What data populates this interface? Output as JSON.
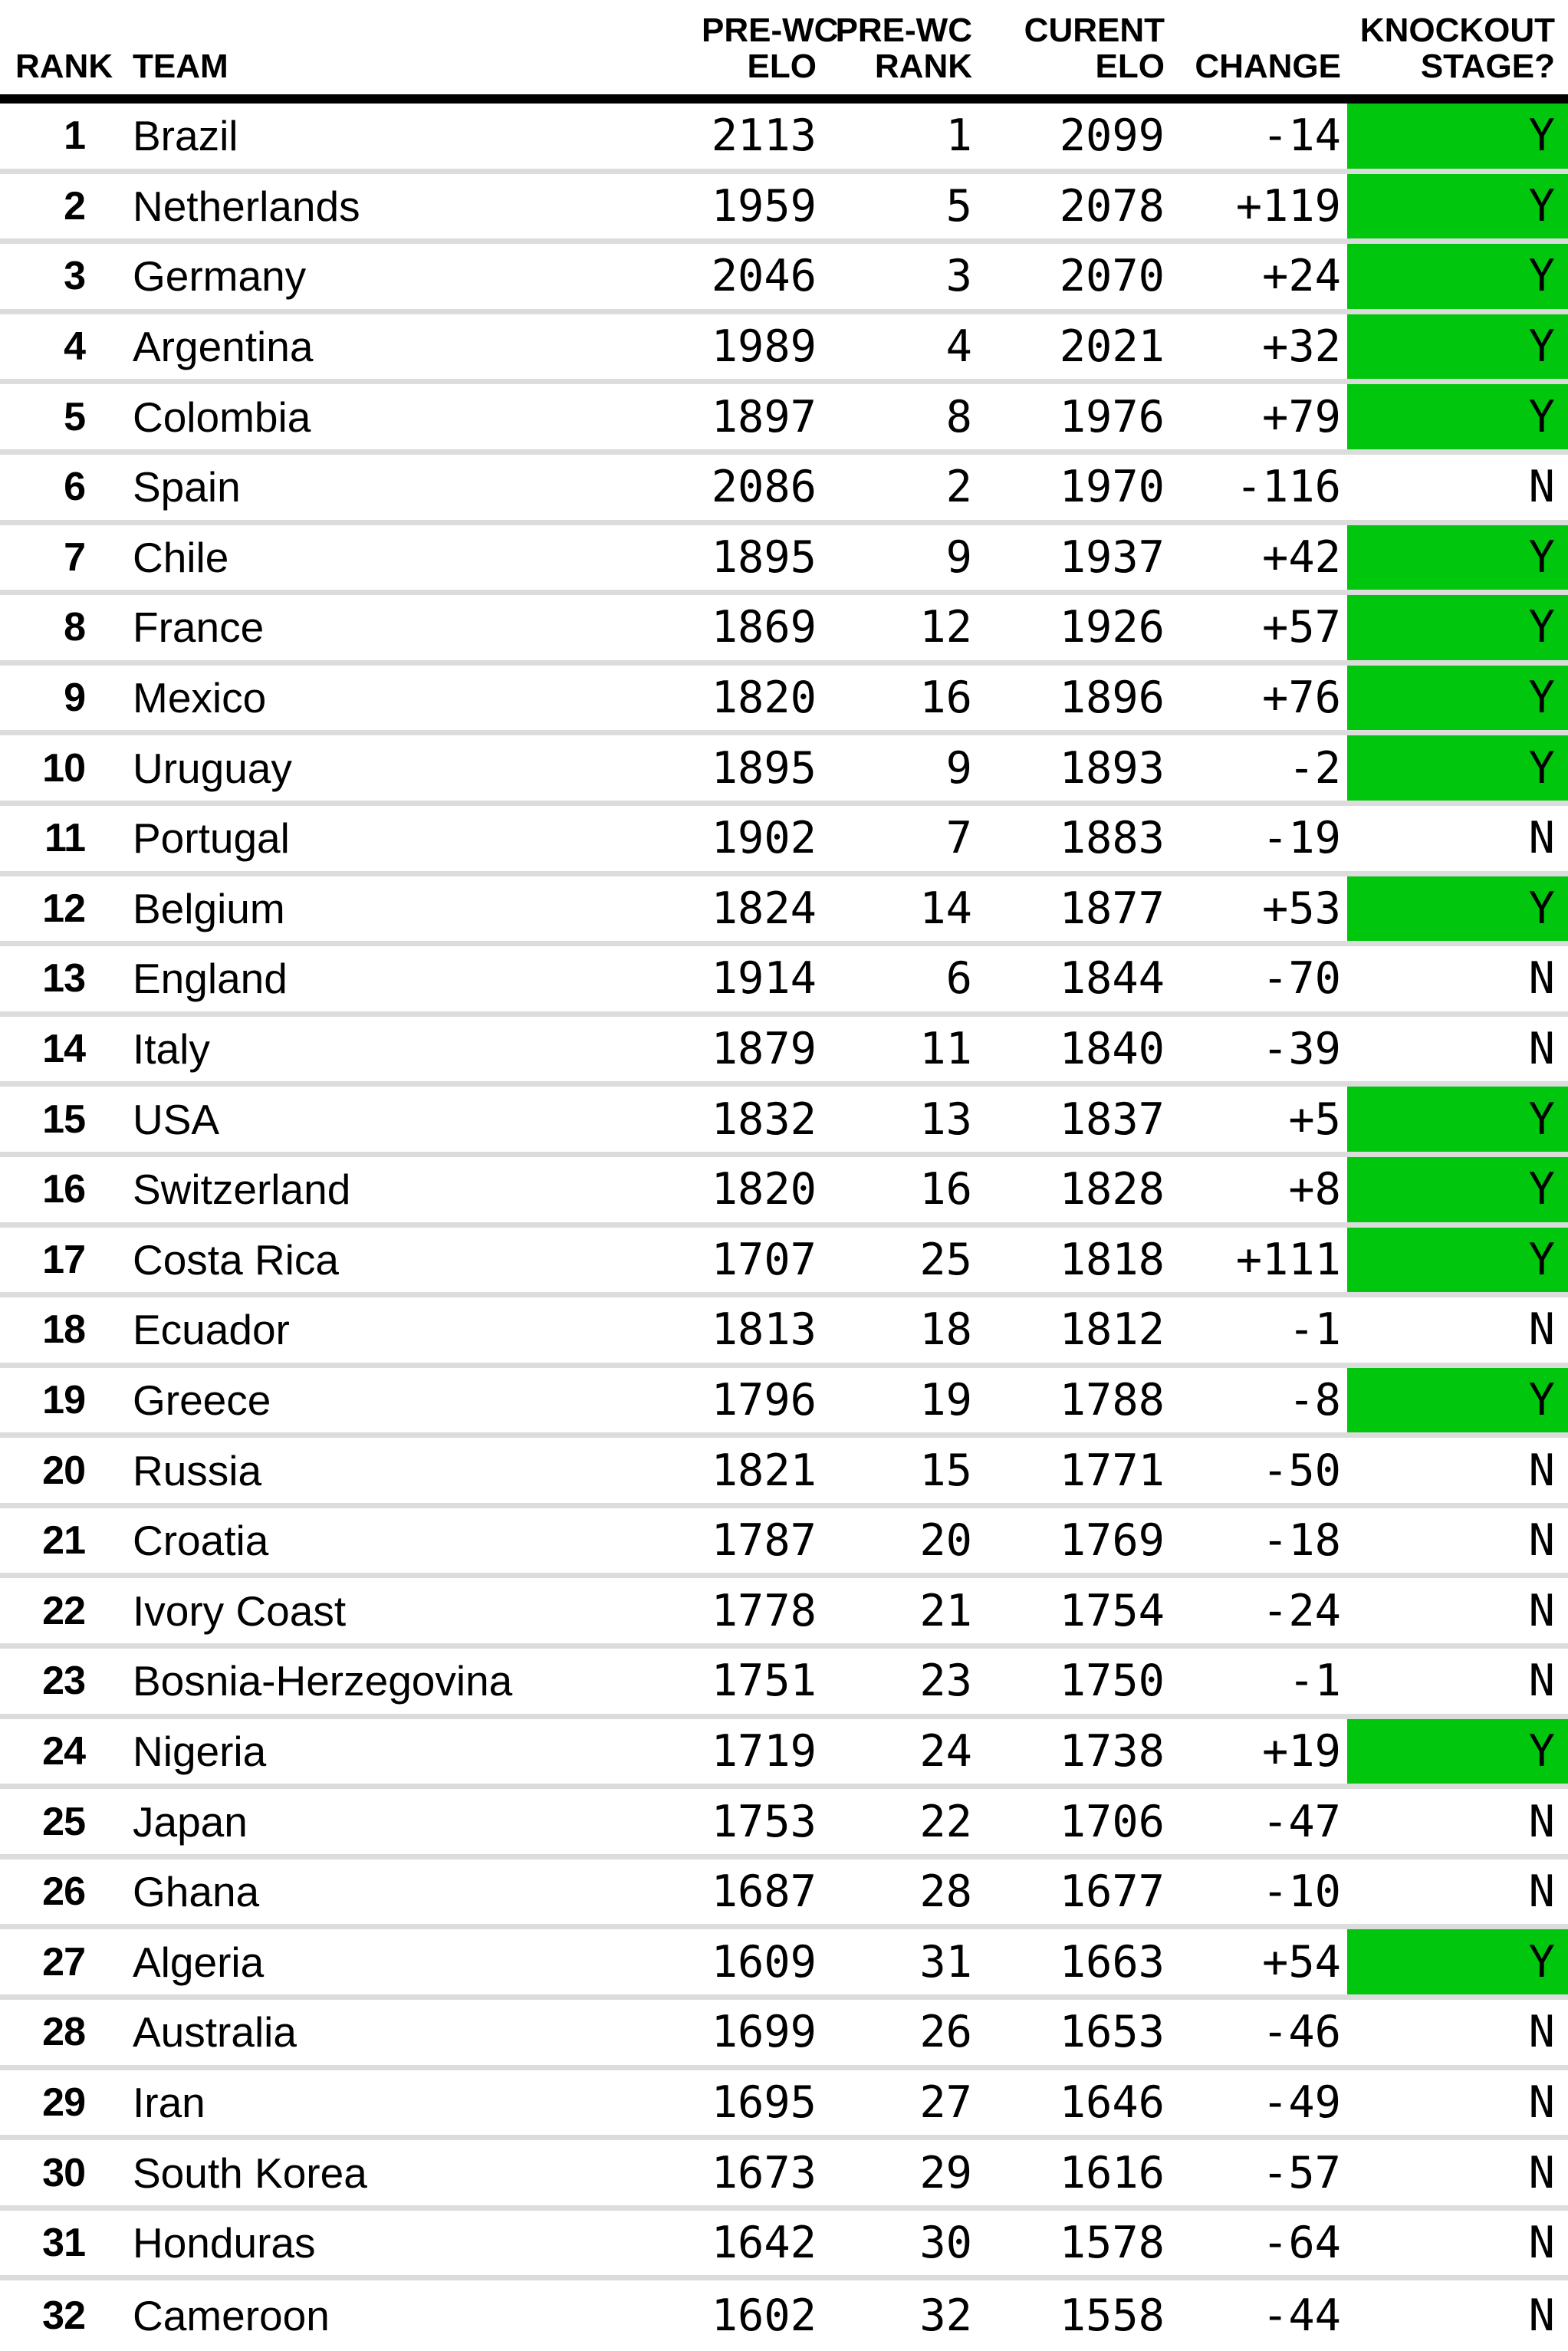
{
  "table": {
    "headers": {
      "rank": "RANK",
      "team": "TEAM",
      "pre_wc_elo_line1": "PRE-WC",
      "pre_wc_elo_line2": "ELO",
      "pre_wc_rank_line1": "PRE-WC",
      "pre_wc_rank_line2": "RANK",
      "current_elo_line1": "CURENT",
      "current_elo_line2": "ELO",
      "change": "CHANGE",
      "knockout_line1": "KNOCKOUT",
      "knockout_line2": "STAGE?"
    },
    "rows": [
      {
        "rank": "1",
        "team": "Brazil",
        "pre_wc_elo": "2113",
        "pre_wc_rank": "1",
        "current_elo": "2099",
        "change": "-14",
        "knockout": "Y"
      },
      {
        "rank": "2",
        "team": "Netherlands",
        "pre_wc_elo": "1959",
        "pre_wc_rank": "5",
        "current_elo": "2078",
        "change": "+119",
        "knockout": "Y"
      },
      {
        "rank": "3",
        "team": "Germany",
        "pre_wc_elo": "2046",
        "pre_wc_rank": "3",
        "current_elo": "2070",
        "change": "+24",
        "knockout": "Y"
      },
      {
        "rank": "4",
        "team": "Argentina",
        "pre_wc_elo": "1989",
        "pre_wc_rank": "4",
        "current_elo": "2021",
        "change": "+32",
        "knockout": "Y"
      },
      {
        "rank": "5",
        "team": "Colombia",
        "pre_wc_elo": "1897",
        "pre_wc_rank": "8",
        "current_elo": "1976",
        "change": "+79",
        "knockout": "Y"
      },
      {
        "rank": "6",
        "team": "Spain",
        "pre_wc_elo": "2086",
        "pre_wc_rank": "2",
        "current_elo": "1970",
        "change": "-116",
        "knockout": "N"
      },
      {
        "rank": "7",
        "team": "Chile",
        "pre_wc_elo": "1895",
        "pre_wc_rank": "9",
        "current_elo": "1937",
        "change": "+42",
        "knockout": "Y"
      },
      {
        "rank": "8",
        "team": "France",
        "pre_wc_elo": "1869",
        "pre_wc_rank": "12",
        "current_elo": "1926",
        "change": "+57",
        "knockout": "Y"
      },
      {
        "rank": "9",
        "team": "Mexico",
        "pre_wc_elo": "1820",
        "pre_wc_rank": "16",
        "current_elo": "1896",
        "change": "+76",
        "knockout": "Y"
      },
      {
        "rank": "10",
        "team": "Uruguay",
        "pre_wc_elo": "1895",
        "pre_wc_rank": "9",
        "current_elo": "1893",
        "change": "-2",
        "knockout": "Y"
      },
      {
        "rank": "11",
        "team": "Portugal",
        "pre_wc_elo": "1902",
        "pre_wc_rank": "7",
        "current_elo": "1883",
        "change": "-19",
        "knockout": "N"
      },
      {
        "rank": "12",
        "team": "Belgium",
        "pre_wc_elo": "1824",
        "pre_wc_rank": "14",
        "current_elo": "1877",
        "change": "+53",
        "knockout": "Y"
      },
      {
        "rank": "13",
        "team": "England",
        "pre_wc_elo": "1914",
        "pre_wc_rank": "6",
        "current_elo": "1844",
        "change": "-70",
        "knockout": "N"
      },
      {
        "rank": "14",
        "team": "Italy",
        "pre_wc_elo": "1879",
        "pre_wc_rank": "11",
        "current_elo": "1840",
        "change": "-39",
        "knockout": "N"
      },
      {
        "rank": "15",
        "team": "USA",
        "pre_wc_elo": "1832",
        "pre_wc_rank": "13",
        "current_elo": "1837",
        "change": "+5",
        "knockout": "Y"
      },
      {
        "rank": "16",
        "team": "Switzerland",
        "pre_wc_elo": "1820",
        "pre_wc_rank": "16",
        "current_elo": "1828",
        "change": "+8",
        "knockout": "Y"
      },
      {
        "rank": "17",
        "team": "Costa Rica",
        "pre_wc_elo": "1707",
        "pre_wc_rank": "25",
        "current_elo": "1818",
        "change": "+111",
        "knockout": "Y"
      },
      {
        "rank": "18",
        "team": "Ecuador",
        "pre_wc_elo": "1813",
        "pre_wc_rank": "18",
        "current_elo": "1812",
        "change": "-1",
        "knockout": "N"
      },
      {
        "rank": "19",
        "team": "Greece",
        "pre_wc_elo": "1796",
        "pre_wc_rank": "19",
        "current_elo": "1788",
        "change": "-8",
        "knockout": "Y"
      },
      {
        "rank": "20",
        "team": "Russia",
        "pre_wc_elo": "1821",
        "pre_wc_rank": "15",
        "current_elo": "1771",
        "change": "-50",
        "knockout": "N"
      },
      {
        "rank": "21",
        "team": "Croatia",
        "pre_wc_elo": "1787",
        "pre_wc_rank": "20",
        "current_elo": "1769",
        "change": "-18",
        "knockout": "N"
      },
      {
        "rank": "22",
        "team": "Ivory Coast",
        "pre_wc_elo": "1778",
        "pre_wc_rank": "21",
        "current_elo": "1754",
        "change": "-24",
        "knockout": "N"
      },
      {
        "rank": "23",
        "team": "Bosnia-Herzegovina",
        "pre_wc_elo": "1751",
        "pre_wc_rank": "23",
        "current_elo": "1750",
        "change": "-1",
        "knockout": "N"
      },
      {
        "rank": "24",
        "team": "Nigeria",
        "pre_wc_elo": "1719",
        "pre_wc_rank": "24",
        "current_elo": "1738",
        "change": "+19",
        "knockout": "Y"
      },
      {
        "rank": "25",
        "team": "Japan",
        "pre_wc_elo": "1753",
        "pre_wc_rank": "22",
        "current_elo": "1706",
        "change": "-47",
        "knockout": "N"
      },
      {
        "rank": "26",
        "team": "Ghana",
        "pre_wc_elo": "1687",
        "pre_wc_rank": "28",
        "current_elo": "1677",
        "change": "-10",
        "knockout": "N"
      },
      {
        "rank": "27",
        "team": "Algeria",
        "pre_wc_elo": "1609",
        "pre_wc_rank": "31",
        "current_elo": "1663",
        "change": "+54",
        "knockout": "Y"
      },
      {
        "rank": "28",
        "team": "Australia",
        "pre_wc_elo": "1699",
        "pre_wc_rank": "26",
        "current_elo": "1653",
        "change": "-46",
        "knockout": "N"
      },
      {
        "rank": "29",
        "team": "Iran",
        "pre_wc_elo": "1695",
        "pre_wc_rank": "27",
        "current_elo": "1646",
        "change": "-49",
        "knockout": "N"
      },
      {
        "rank": "30",
        "team": "South Korea",
        "pre_wc_elo": "1673",
        "pre_wc_rank": "29",
        "current_elo": "1616",
        "change": "-57",
        "knockout": "N"
      },
      {
        "rank": "31",
        "team": "Honduras",
        "pre_wc_elo": "1642",
        "pre_wc_rank": "30",
        "current_elo": "1578",
        "change": "-64",
        "knockout": "N"
      },
      {
        "rank": "32",
        "team": "Cameroon",
        "pre_wc_elo": "1602",
        "pre_wc_rank": "32",
        "current_elo": "1558",
        "change": "-44",
        "knockout": "N"
      }
    ]
  },
  "colors": {
    "knockout_yes_green": "#00c70e",
    "separator_gray": "#dcdcdc",
    "header_rule_black": "#000000"
  },
  "chart_data": {
    "type": "table",
    "title": "World Cup team Elo ratings: pre-tournament vs current",
    "columns": [
      "RANK",
      "TEAM",
      "PRE-WC ELO",
      "PRE-WC RANK",
      "CURENT ELO",
      "CHANGE",
      "KNOCKOUT STAGE?"
    ],
    "rows": [
      [
        1,
        "Brazil",
        2113,
        1,
        2099,
        -14,
        "Y"
      ],
      [
        2,
        "Netherlands",
        1959,
        5,
        2078,
        119,
        "Y"
      ],
      [
        3,
        "Germany",
        2046,
        3,
        2070,
        24,
        "Y"
      ],
      [
        4,
        "Argentina",
        1989,
        4,
        2021,
        32,
        "Y"
      ],
      [
        5,
        "Colombia",
        1897,
        8,
        1976,
        79,
        "Y"
      ],
      [
        6,
        "Spain",
        2086,
        2,
        1970,
        -116,
        "N"
      ],
      [
        7,
        "Chile",
        1895,
        9,
        1937,
        42,
        "Y"
      ],
      [
        8,
        "France",
        1869,
        12,
        1926,
        57,
        "Y"
      ],
      [
        9,
        "Mexico",
        1820,
        16,
        1896,
        76,
        "Y"
      ],
      [
        10,
        "Uruguay",
        1895,
        9,
        1893,
        -2,
        "Y"
      ],
      [
        11,
        "Portugal",
        1902,
        7,
        1883,
        -19,
        "N"
      ],
      [
        12,
        "Belgium",
        1824,
        14,
        1877,
        53,
        "Y"
      ],
      [
        13,
        "England",
        1914,
        6,
        1844,
        -70,
        "N"
      ],
      [
        14,
        "Italy",
        1879,
        11,
        1840,
        -39,
        "N"
      ],
      [
        15,
        "USA",
        1832,
        13,
        1837,
        5,
        "Y"
      ],
      [
        16,
        "Switzerland",
        1820,
        16,
        1828,
        8,
        "Y"
      ],
      [
        17,
        "Costa Rica",
        1707,
        25,
        1818,
        111,
        "Y"
      ],
      [
        18,
        "Ecuador",
        1813,
        18,
        1812,
        -1,
        "N"
      ],
      [
        19,
        "Greece",
        1796,
        19,
        1788,
        -8,
        "Y"
      ],
      [
        20,
        "Russia",
        1821,
        15,
        1771,
        -50,
        "N"
      ],
      [
        21,
        "Croatia",
        1787,
        20,
        1769,
        -18,
        "N"
      ],
      [
        22,
        "Ivory Coast",
        1778,
        21,
        1754,
        -24,
        "N"
      ],
      [
        23,
        "Bosnia-Herzegovina",
        1751,
        23,
        1750,
        -1,
        "N"
      ],
      [
        24,
        "Nigeria",
        1719,
        24,
        1738,
        19,
        "Y"
      ],
      [
        25,
        "Japan",
        1753,
        22,
        1706,
        -47,
        "N"
      ],
      [
        26,
        "Ghana",
        1687,
        28,
        1677,
        -10,
        "N"
      ],
      [
        27,
        "Algeria",
        1609,
        31,
        1663,
        54,
        "Y"
      ],
      [
        28,
        "Australia",
        1699,
        26,
        1653,
        -46,
        "N"
      ],
      [
        29,
        "Iran",
        1695,
        27,
        1646,
        -49,
        "N"
      ],
      [
        30,
        "South Korea",
        1673,
        29,
        1616,
        -57,
        "N"
      ],
      [
        31,
        "Honduras",
        1642,
        30,
        1578,
        -64,
        "N"
      ],
      [
        32,
        "Cameroon",
        1602,
        32,
        1558,
        -44,
        "N"
      ]
    ]
  }
}
